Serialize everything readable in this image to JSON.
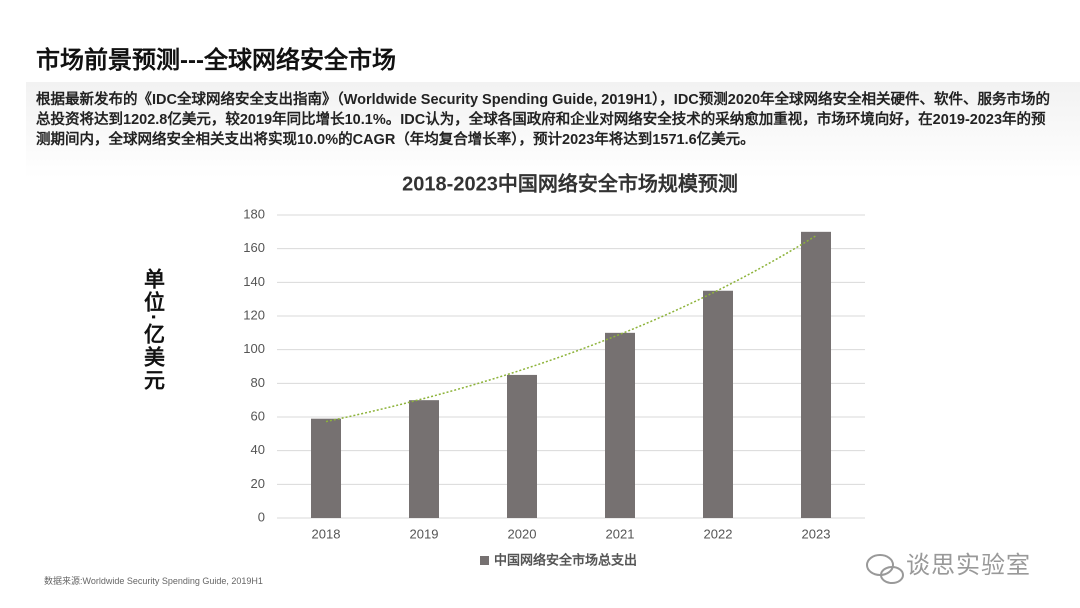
{
  "header": {
    "title": "市场前景预测---全球网络安全市场"
  },
  "paragraph": "根据最新发布的《IDC全球网络安全支出指南》（Worldwide Security Spending Guide, 2019H1），IDC预测2020年全球网络安全相关硬件、软件、服务市场的总投资将达到1202.8亿美元，较2019年同比增长10.1%。IDC认为，全球各国政府和企业对网络安全技术的采纳愈加重视，市场环境向好，在2019-2023年的预测期间内，全球网络安全相关支出将实现10.0%的CAGR（年均复合增长率），预计2023年将达到1571.6亿美元。",
  "source": "数据来源:Worldwide Security Spending Guide, 2019H1",
  "watermark": "谈思实验室",
  "chart_data": {
    "type": "bar",
    "title": "2018-2023中国网络安全市场规模预测",
    "y_label": "单位·亿美元",
    "categories": [
      "2018",
      "2019",
      "2020",
      "2021",
      "2022",
      "2023"
    ],
    "series": [
      {
        "name": "中国网络安全市场总支出",
        "color": "#767171",
        "values": [
          59,
          70,
          85,
          110,
          135,
          170
        ]
      }
    ],
    "ylim": [
      0,
      180
    ],
    "yticks": [
      0,
      20,
      40,
      60,
      80,
      100,
      120,
      140,
      160,
      180
    ],
    "grid": true,
    "legend": "bottom",
    "trendline": {
      "type": "exponential",
      "color": "#8db33a"
    }
  }
}
